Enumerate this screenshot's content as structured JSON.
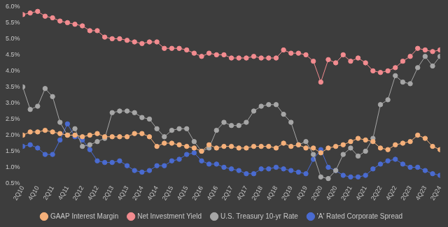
{
  "chart_data": {
    "type": "line",
    "categories": [
      "2Q10",
      null,
      "4Q10",
      null,
      "2Q11",
      null,
      "4Q11",
      null,
      "2Q12",
      null,
      "4Q12",
      null,
      "2Q13",
      null,
      "4Q13",
      null,
      "2Q14",
      null,
      "4Q14",
      null,
      "2Q15",
      null,
      "4Q15",
      null,
      "2Q16",
      null,
      "4Q16",
      null,
      "2Q17",
      null,
      "4Q17",
      null,
      "2Q18",
      null,
      "4Q18",
      null,
      "2Q19",
      null,
      "4Q19",
      null,
      "2Q20",
      null,
      "4Q20",
      null,
      "2Q21",
      null,
      "4Q21",
      null,
      "2Q22",
      null,
      "4Q22",
      null,
      "2Q23",
      null,
      "4Q23",
      null,
      "2Q24"
    ],
    "series": [
      {
        "name": "GAAP Interest Margin",
        "color": "#f5b07a",
        "marker": "circle",
        "line_style": "solid",
        "values": [
          2.0,
          2.1,
          2.1,
          2.15,
          2.1,
          2.05,
          2.0,
          2.0,
          1.95,
          2.0,
          2.05,
          1.95,
          1.95,
          1.95,
          1.95,
          2.05,
          2.05,
          1.95,
          1.65,
          1.75,
          1.75,
          1.7,
          1.65,
          1.6,
          1.5,
          1.7,
          1.6,
          1.65,
          1.65,
          1.6,
          1.6,
          1.65,
          1.65,
          1.65,
          1.6,
          1.75,
          1.65,
          1.7,
          1.6,
          1.6,
          1.45,
          1.6,
          1.65,
          1.7,
          1.8,
          1.9,
          1.85,
          1.8,
          1.6,
          1.55,
          1.7,
          1.75,
          1.8,
          2.0,
          1.9,
          1.65,
          1.55
        ]
      },
      {
        "name": "Net Investment Yield",
        "color": "#f28b8f",
        "marker": "circle",
        "line_style": "solid",
        "values": [
          5.75,
          5.8,
          5.85,
          5.7,
          5.65,
          5.55,
          5.5,
          5.45,
          5.4,
          5.25,
          5.25,
          5.05,
          5.0,
          5.0,
          4.95,
          4.9,
          4.85,
          4.9,
          4.9,
          4.7,
          4.7,
          4.7,
          4.65,
          4.55,
          4.45,
          4.55,
          4.5,
          4.5,
          4.4,
          4.4,
          4.4,
          4.45,
          4.4,
          4.4,
          4.4,
          4.65,
          4.55,
          4.55,
          4.5,
          4.3,
          3.65,
          4.35,
          4.25,
          4.5,
          4.3,
          4.4,
          4.25,
          4.0,
          3.95,
          4.0,
          4.1,
          4.3,
          4.45,
          4.7,
          4.65,
          4.6,
          4.65
        ]
      },
      {
        "name": "U.S. Treasury 10-yr Rate",
        "color": "#a6a6a6",
        "marker": "circle",
        "line_style": "solid",
        "values": [
          3.5,
          2.8,
          2.9,
          3.45,
          3.2,
          2.4,
          2.0,
          2.2,
          1.65,
          1.7,
          1.8,
          1.9,
          2.7,
          2.75,
          2.75,
          2.7,
          2.55,
          2.5,
          2.2,
          1.95,
          2.15,
          2.2,
          2.2,
          1.8,
          1.5,
          1.6,
          2.15,
          2.4,
          2.3,
          2.3,
          2.4,
          2.75,
          2.9,
          2.95,
          2.95,
          2.65,
          2.4,
          1.7,
          1.8,
          1.4,
          0.7,
          0.65,
          0.9,
          1.4,
          1.6,
          1.35,
          1.5,
          1.9,
          2.95,
          3.1,
          3.85,
          3.65,
          3.6,
          4.1,
          4.45,
          4.15,
          4.45
        ]
      },
      {
        "name": "'A' Rated Corporate Spread",
        "color": "#4a6bd0",
        "marker": "circle",
        "line_style": "solid",
        "values": [
          1.65,
          1.7,
          1.6,
          1.4,
          1.4,
          1.85,
          2.35,
          1.95,
          1.85,
          1.55,
          1.2,
          1.15,
          1.15,
          1.2,
          1.05,
          0.9,
          0.85,
          0.9,
          1.05,
          1.05,
          1.2,
          1.25,
          1.4,
          1.45,
          1.2,
          1.1,
          1.1,
          1.0,
          0.95,
          0.9,
          0.8,
          0.8,
          0.95,
          0.95,
          1.0,
          0.95,
          0.9,
          0.85,
          0.8,
          1.25,
          1.55,
          1.0,
          0.9,
          0.75,
          0.7,
          0.7,
          0.75,
          0.95,
          1.1,
          1.2,
          1.25,
          1.1,
          1.0,
          1.0,
          0.9,
          0.8,
          0.75
        ]
      }
    ],
    "ylim": [
      0.5,
      6.0
    ],
    "yticks": [
      {
        "value": 0.5,
        "label": "0.5%"
      },
      {
        "value": 1.0,
        "label": "1.0%"
      },
      {
        "value": 1.5,
        "label": "1.5%"
      },
      {
        "value": 2.0,
        "label": "2.0%"
      },
      {
        "value": 2.5,
        "label": "2.5%"
      },
      {
        "value": 3.0,
        "label": "3.0%"
      },
      {
        "value": 3.5,
        "label": "3.5%"
      },
      {
        "value": 4.0,
        "label": "4.0%"
      },
      {
        "value": 4.5,
        "label": "4.5%"
      },
      {
        "value": 5.0,
        "label": "5.0%"
      },
      {
        "value": 5.5,
        "label": "5.5%"
      },
      {
        "value": 6.0,
        "label": "6.0%"
      }
    ],
    "grid": false,
    "legend": "bottom"
  }
}
